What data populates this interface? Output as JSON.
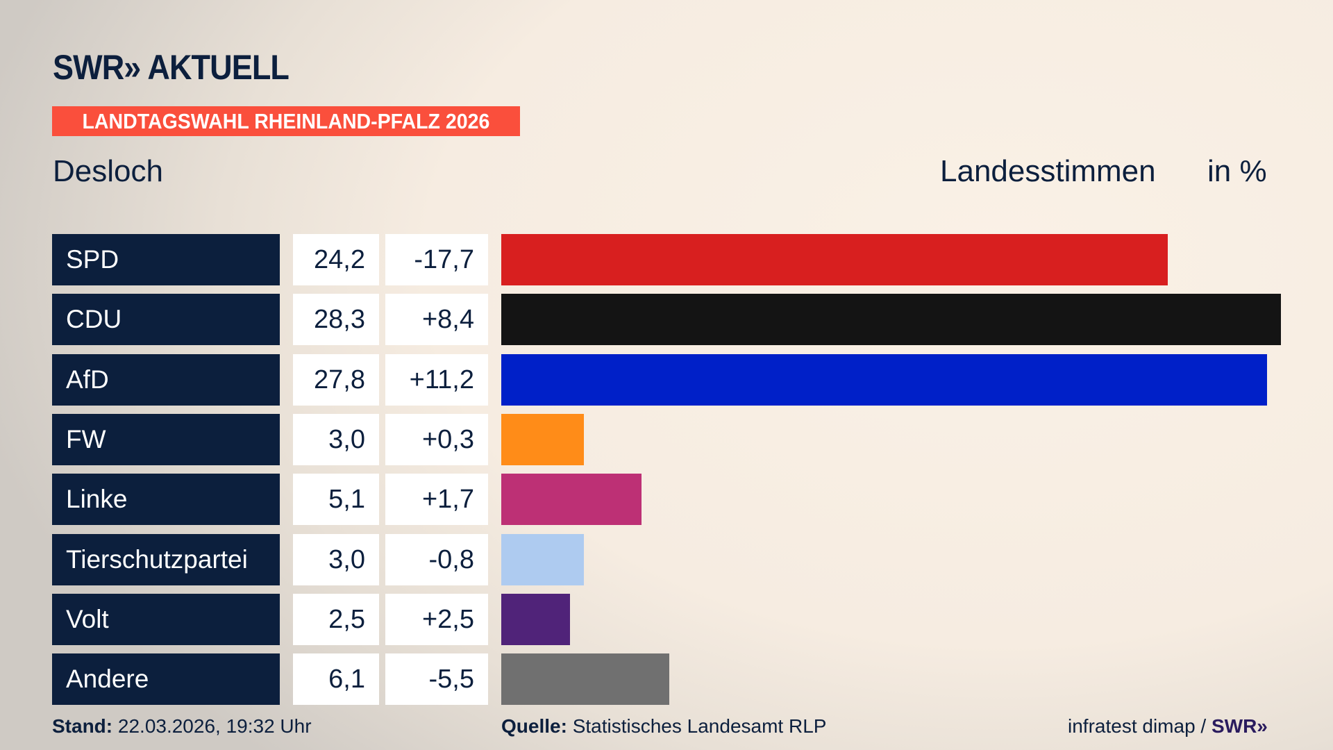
{
  "header": {
    "logo": "SWR» AKTUELL",
    "banner": "LANDTAGSWAHL RHEINLAND-PFALZ 2026",
    "place": "Desloch",
    "measure": "Landesstimmen",
    "unit": "in %"
  },
  "colors": {
    "navy": "#0c1f3d",
    "banner": "#fa4f3c"
  },
  "chart_data": {
    "type": "bar",
    "orientation": "horizontal",
    "categories": [
      "SPD",
      "CDU",
      "AfD",
      "FW",
      "Linke",
      "Tierschutzpartei",
      "Volt",
      "Andere"
    ],
    "values": [
      24.2,
      28.3,
      27.8,
      3.0,
      5.1,
      3.0,
      2.5,
      6.1
    ],
    "value_labels": [
      "24,2",
      "28,3",
      "27,8",
      "3,0",
      "5,1",
      "3,0",
      "2,5",
      "6,1"
    ],
    "diff_labels": [
      "-17,7",
      "+8,4",
      "+11,2",
      "+0,3",
      "+1,7",
      "-0,8",
      "+2,5",
      "-5,5"
    ],
    "colors": [
      "#d81f1f",
      "#141414",
      "#0020c8",
      "#ff8c18",
      "#bd3075",
      "#aecbf0",
      "#502379",
      "#707070"
    ],
    "xlim": [
      0,
      28.3
    ]
  },
  "footer": {
    "stand_label": "Stand:",
    "stand_value": "22.03.2026, 19:32 Uhr",
    "source_label": "Quelle:",
    "source_value": "Statistisches Landesamt RLP",
    "credit": "infratest dimap /",
    "credit_logo": "SWR»"
  }
}
